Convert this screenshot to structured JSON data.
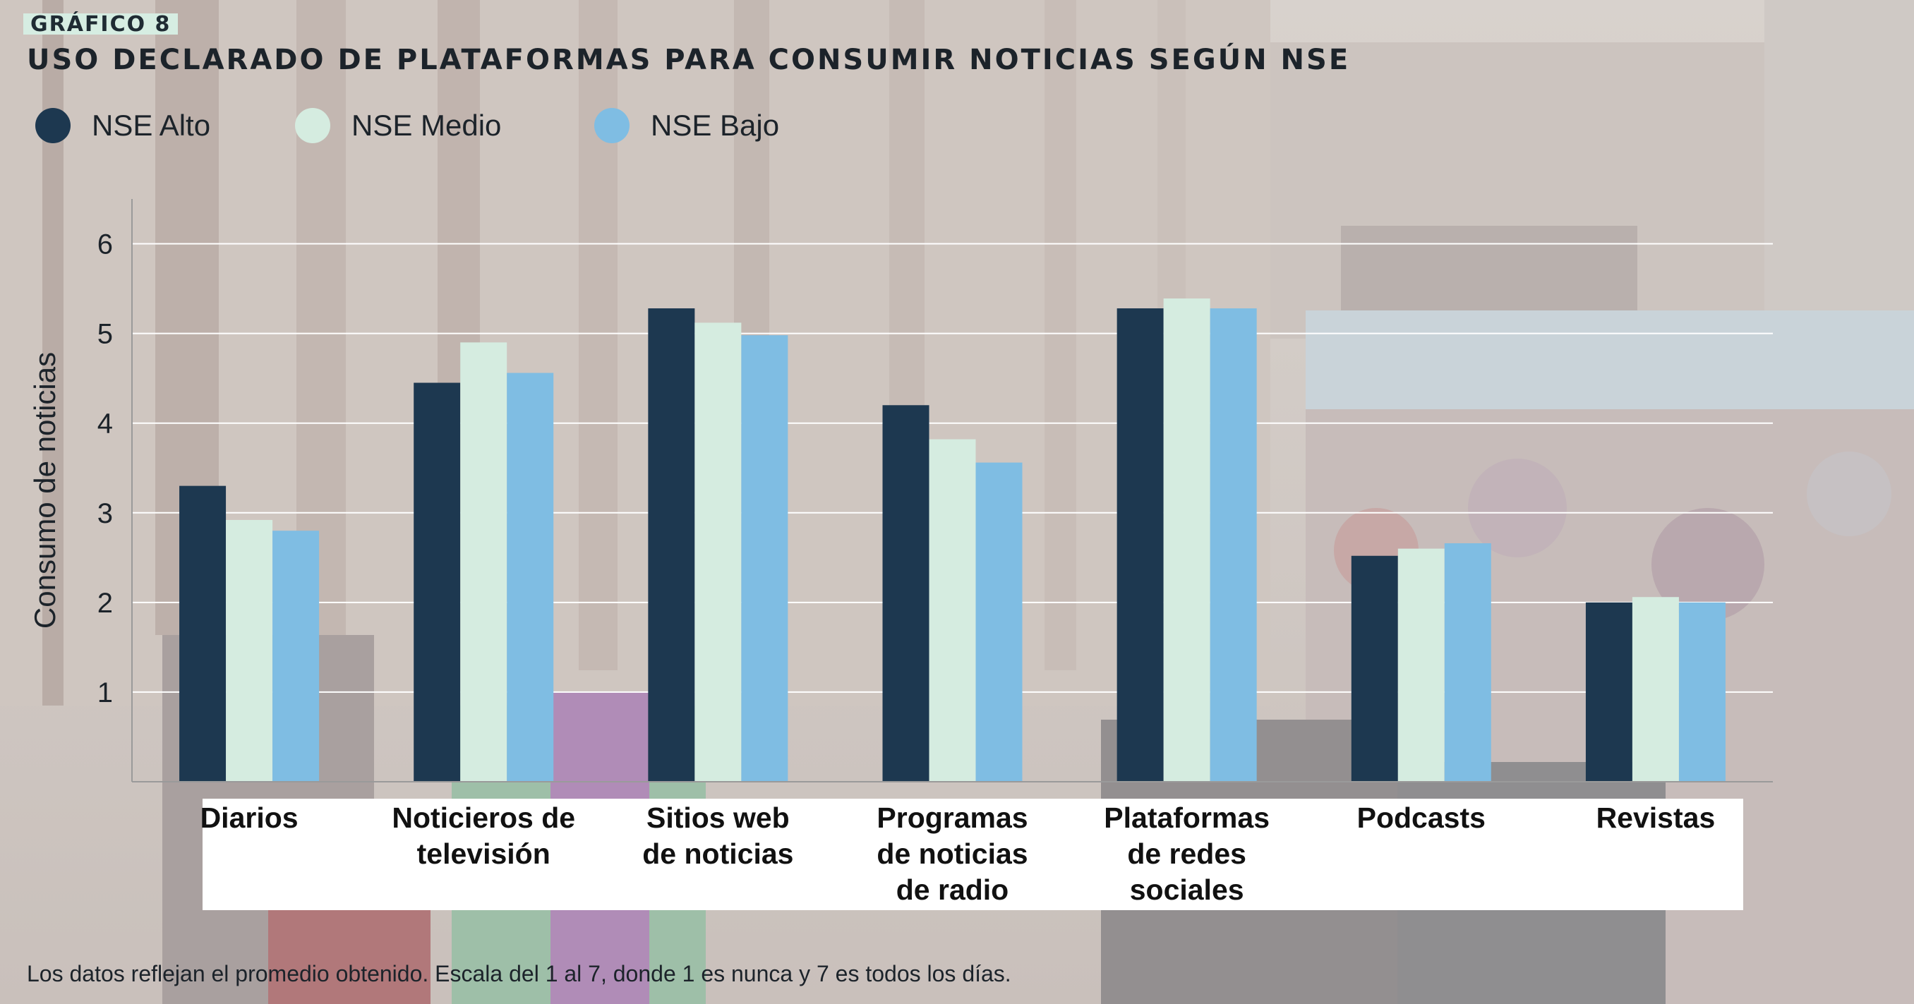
{
  "header": {
    "tag": "GRÁFICO 8",
    "title": "USO DECLARADO DE PLATAFORMAS PARA CONSUMIR NOTICIAS SEGÚN NSE"
  },
  "legend": [
    {
      "label": "NSE Alto",
      "color": "#1d3850"
    },
    {
      "label": "NSE Medio",
      "color": "#d5ece0"
    },
    {
      "label": "NSE Bajo",
      "color": "#7fbde3"
    }
  ],
  "footnote": "Los datos reflejan el promedio obtenido. Escala del 1 al 7, donde 1 es nunca y 7 es todos los días.",
  "chart_data": {
    "type": "bar",
    "categories": [
      [
        "Diarios"
      ],
      [
        "Noticieros de",
        "televisión"
      ],
      [
        "Sitios web",
        "de noticias"
      ],
      [
        "Programas",
        "de noticias",
        "de radio"
      ],
      [
        "Plataformas",
        "de redes",
        "sociales"
      ],
      [
        "Podcasts"
      ],
      [
        "Revistas"
      ]
    ],
    "series": [
      {
        "name": "NSE Alto",
        "color": "#1d3850",
        "values": [
          3.3,
          4.45,
          5.28,
          4.2,
          5.28,
          2.52,
          2.0
        ]
      },
      {
        "name": "NSE Medio",
        "color": "#d5ece0",
        "values": [
          2.92,
          4.9,
          5.12,
          3.82,
          5.39,
          2.6,
          2.06
        ]
      },
      {
        "name": "NSE Bajo",
        "color": "#7fbde3",
        "values": [
          2.8,
          4.56,
          4.98,
          3.56,
          5.28,
          2.66,
          2.0
        ]
      }
    ],
    "ylabel": "Consumo de noticias",
    "yticks": [
      1,
      2,
      3,
      4,
      5,
      6
    ],
    "ylim": [
      0,
      6.5
    ],
    "grid": true
  }
}
